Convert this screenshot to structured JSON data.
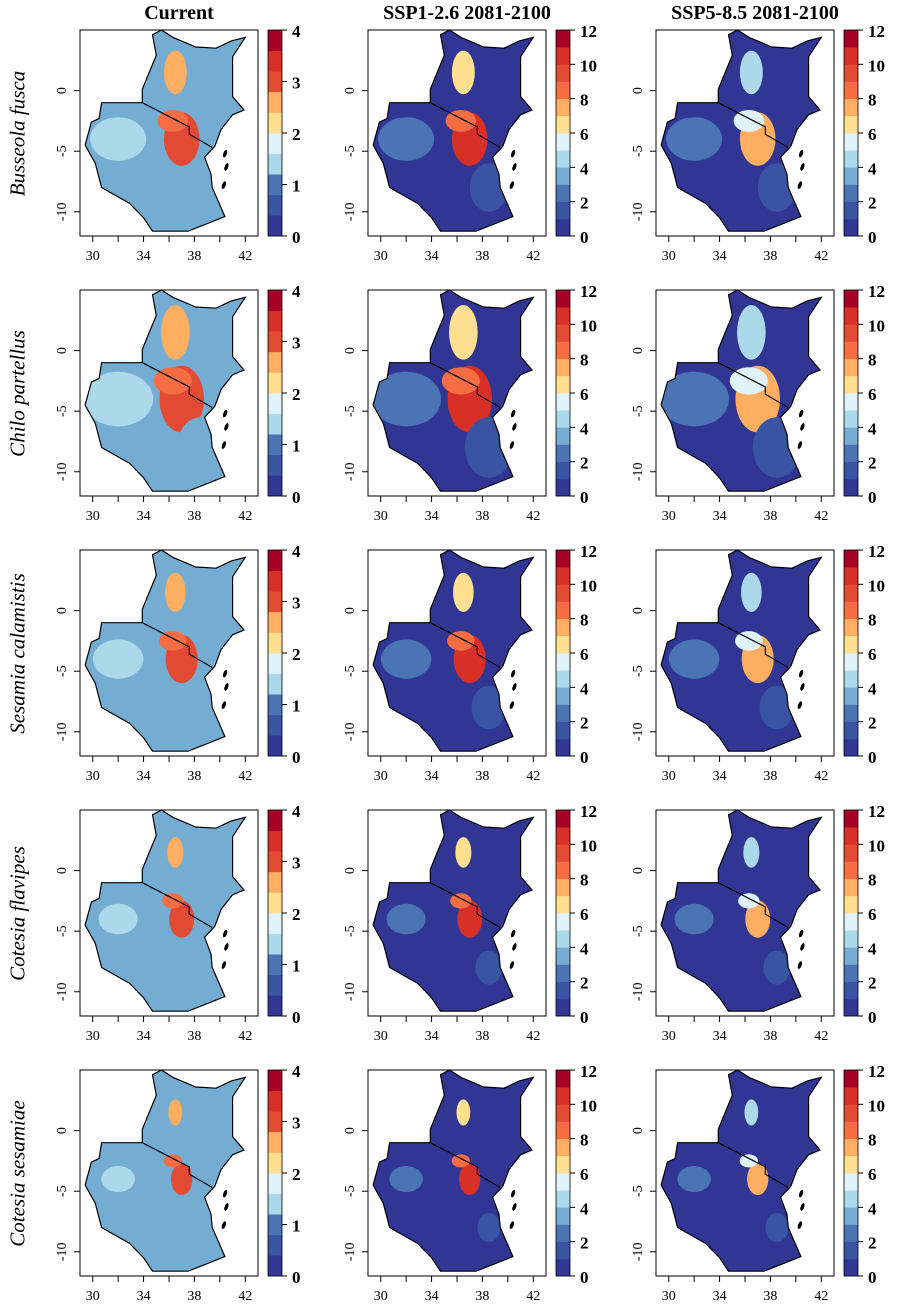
{
  "columns": [
    {
      "title": "Current",
      "scale_max": 4,
      "scale_ticks": [
        "0",
        "1",
        "2",
        "3",
        "4"
      ],
      "levels": 10
    },
    {
      "title": "SSP1-2.6 2081-2100",
      "scale_max": 12,
      "scale_ticks": [
        "0",
        "2",
        "4",
        "6",
        "8",
        "10",
        "12"
      ],
      "levels": 12
    },
    {
      "title": "SSP5-8.5 2081-2100",
      "scale_max": 12,
      "scale_ticks": [
        "0",
        "2",
        "4",
        "6",
        "8",
        "10",
        "12"
      ],
      "levels": 12
    }
  ],
  "rows": [
    {
      "species": "Busseola fusca"
    },
    {
      "species": "Chilo partellus"
    },
    {
      "species": "Sesamia calamistis"
    },
    {
      "species": "Cotesia flavipes"
    },
    {
      "species": "Cotesia sesamiae"
    }
  ],
  "x_ticks": [
    "30",
    "34",
    "38",
    "42"
  ],
  "y_ticks": [
    "0",
    "-5",
    "-10"
  ],
  "palette": [
    "#313695",
    "#3a54a4",
    "#4a74b4",
    "#74add1",
    "#abd9e9",
    "#e0f3f8",
    "#fee090",
    "#fdae61",
    "#f46d43",
    "#e34a33",
    "#d73027",
    "#a50026"
  ]
}
